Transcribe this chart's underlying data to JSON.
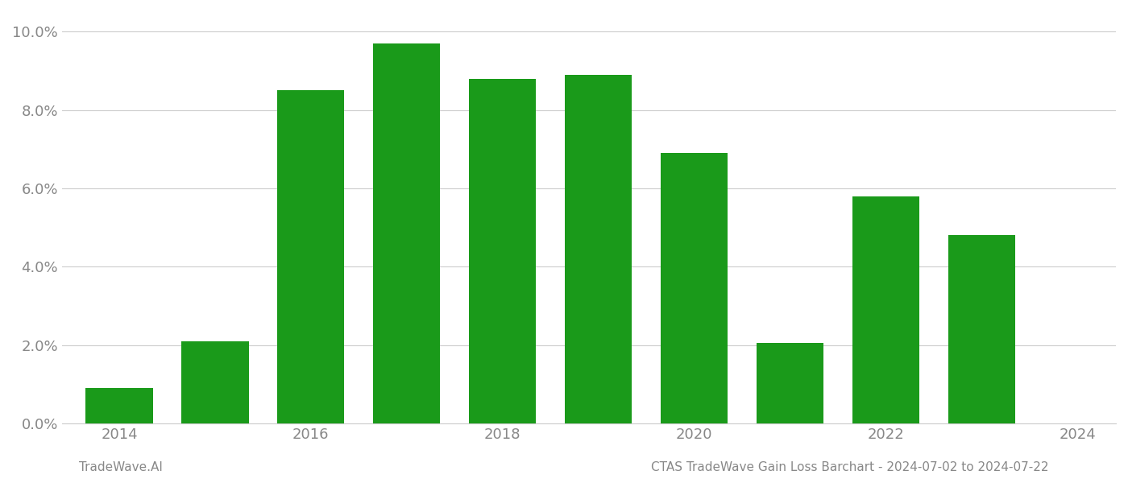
{
  "years": [
    2014,
    2015,
    2016,
    2017,
    2018,
    2019,
    2020,
    2021,
    2022,
    2023
  ],
  "values": [
    0.009,
    0.021,
    0.085,
    0.097,
    0.088,
    0.089,
    0.069,
    0.0205,
    0.058,
    0.048
  ],
  "bar_color": "#1a9a1a",
  "background_color": "#ffffff",
  "ylim": [
    0,
    0.105
  ],
  "yticks": [
    0.0,
    0.02,
    0.04,
    0.06,
    0.08,
    0.1
  ],
  "xticks": [
    2014,
    2016,
    2018,
    2020,
    2022,
    2024
  ],
  "xlim": [
    2013.4,
    2024.4
  ],
  "xlabel": "",
  "ylabel": "",
  "title": "",
  "footer_left": "TradeWave.AI",
  "footer_right": "CTAS TradeWave Gain Loss Barchart - 2024-07-02 to 2024-07-22",
  "footer_fontsize": 11,
  "grid_color": "#cccccc",
  "tick_label_color": "#888888",
  "bar_width": 0.7
}
